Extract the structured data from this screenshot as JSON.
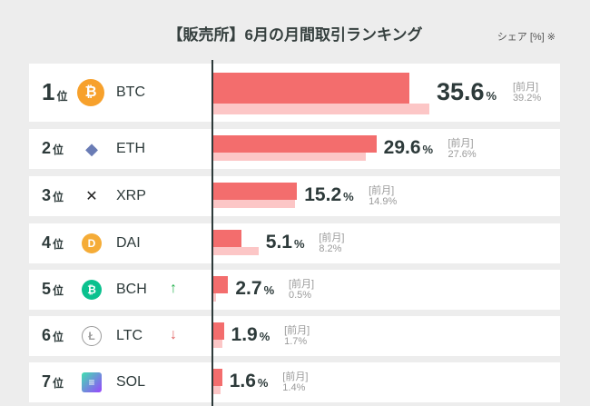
{
  "title": "【販売所】6月の月間取引ランキング",
  "unit_note": "シェア [%] ※",
  "prev_label": "[前月]",
  "rank_suffix": "位",
  "percent_sign": "%",
  "colors": {
    "current": "#f36d6d",
    "previous": "#fcc6c6",
    "up": "#22b14c",
    "down": "#e06060"
  },
  "chart_data": {
    "type": "bar",
    "orientation": "horizontal",
    "categories": [
      "BTC",
      "ETH",
      "XRP",
      "DAI",
      "BCH",
      "LTC",
      "SOL"
    ],
    "series": [
      {
        "values": [
          35.6,
          29.6,
          15.2,
          5.1,
          2.7,
          1.9,
          1.6
        ]
      },
      {
        "name": "前月",
        "values": [
          39.2,
          27.6,
          14.9,
          8.2,
          0.5,
          1.7,
          1.4
        ]
      }
    ]
  },
  "rows": [
    {
      "rank": "1",
      "symbol": "BTC",
      "icon": "bitcoin-icon",
      "icon_color": "#f7a12c",
      "icon_glyph": "₿",
      "current": "35.6",
      "previous": "39.2%",
      "trend": ""
    },
    {
      "rank": "2",
      "symbol": "ETH",
      "icon": "ethereum-icon",
      "icon_color": "#6a7cb5",
      "icon_glyph": "◆",
      "current": "29.6",
      "previous": "27.6%",
      "trend": ""
    },
    {
      "rank": "3",
      "symbol": "XRP",
      "icon": "xrp-icon",
      "icon_color": "#222222",
      "icon_glyph": "✕",
      "current": "15.2",
      "previous": "14.9%",
      "trend": ""
    },
    {
      "rank": "4",
      "symbol": "DAI",
      "icon": "dai-icon",
      "icon_color": "#f5ac37",
      "icon_glyph": "D",
      "current": "5.1",
      "previous": "8.2%",
      "trend": ""
    },
    {
      "rank": "5",
      "symbol": "BCH",
      "icon": "bitcoin-cash-icon",
      "icon_color": "#0ac18e",
      "icon_glyph": "₿",
      "current": "2.7",
      "previous": "0.5%",
      "trend": "up",
      "trend_glyph": "↑"
    },
    {
      "rank": "6",
      "symbol": "LTC",
      "icon": "litecoin-icon",
      "icon_color": "#b8b8b8",
      "icon_glyph": "Ł",
      "current": "1.9",
      "previous": "1.7%",
      "trend": "down",
      "trend_glyph": "↓"
    },
    {
      "rank": "7",
      "symbol": "SOL",
      "icon": "solana-icon",
      "icon_color": "#7b5cf0",
      "icon_glyph": "≡",
      "current": "1.6",
      "previous": "1.4%",
      "trend": ""
    }
  ]
}
